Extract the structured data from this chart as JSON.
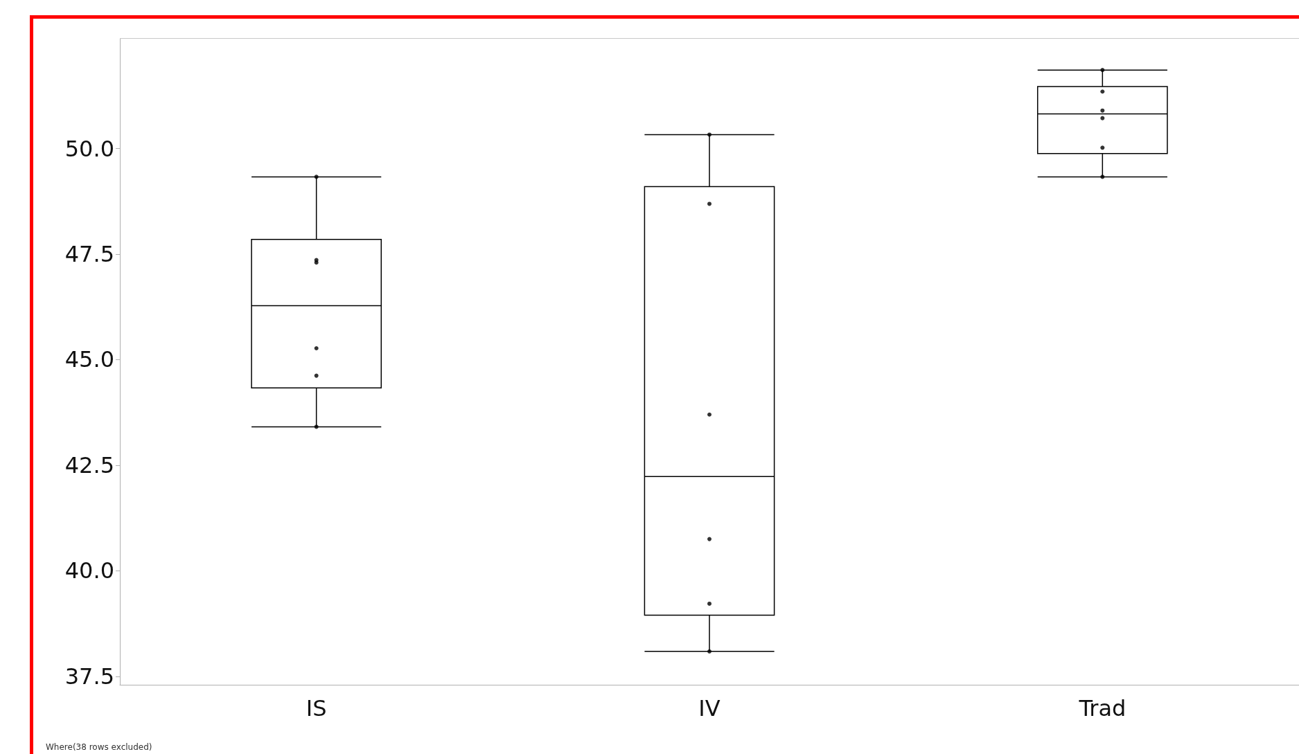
{
  "chart_data": {
    "type": "box",
    "categories": [
      "IS",
      "IV",
      "Trad"
    ],
    "boxes": [
      {
        "low": 43.41,
        "q1": 44.33,
        "median": 46.28,
        "q3": 47.85,
        "high": 49.33
      },
      {
        "low": 38.09,
        "q1": 38.95,
        "median": 42.23,
        "q3": 49.1,
        "high": 50.33
      },
      {
        "low": 49.33,
        "q1": 49.88,
        "median": 50.82,
        "q3": 51.47,
        "high": 51.86
      }
    ],
    "color": "#000000",
    "series": [
      {
        "type": "scatter",
        "color": "#000000",
        "marker": "circle",
        "x": [
          "IS",
          "IS",
          "IS",
          "IS",
          "IS",
          "IS",
          "IV",
          "IV",
          "IV",
          "IV",
          "IV",
          "IV",
          "Trad",
          "Trad",
          "Trad",
          "Trad",
          "Trad",
          "Trad"
        ],
        "values": [
          49.33,
          47.36,
          47.3,
          45.27,
          44.62,
          43.41,
          50.33,
          48.69,
          43.7,
          40.75,
          39.22,
          38.09,
          51.86,
          51.35,
          50.9,
          50.72,
          50.02,
          49.33
        ]
      }
    ],
    "ylim": [
      37.3,
      52.6
    ],
    "yticks": [
      {
        "value": 37.5,
        "label": "37.5"
      },
      {
        "value": 40,
        "label": "40.0"
      },
      {
        "value": 42.5,
        "label": "42.5"
      },
      {
        "value": 45,
        "label": "45.0"
      },
      {
        "value": 47.5,
        "label": "47.5"
      },
      {
        "value": 50,
        "label": "50.0"
      }
    ],
    "grid": false,
    "annotations": [
      "Where(38 rows excluded)"
    ]
  }
}
